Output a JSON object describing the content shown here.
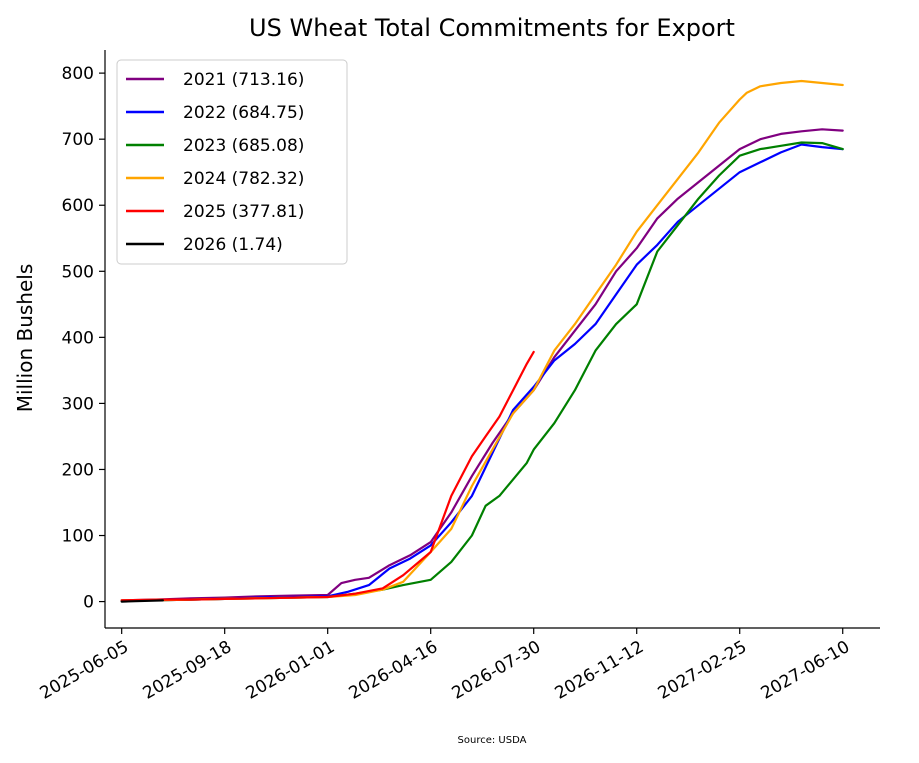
{
  "chart_data": {
    "type": "line",
    "title": "US Wheat Total Commitments for Export",
    "xlabel": "",
    "ylabel": "Million Bushels",
    "source": "Source: USDA",
    "xlim": [
      "2025-05-19",
      "2027-07-18"
    ],
    "ylim": [
      -40,
      835
    ],
    "x_ticks": [
      "2025-06-05",
      "2025-09-18",
      "2026-01-01",
      "2026-04-16",
      "2026-07-30",
      "2026-11-12",
      "2027-02-25",
      "2027-06-10"
    ],
    "y_ticks": [
      0,
      100,
      200,
      300,
      400,
      500,
      600,
      700,
      800
    ],
    "grid": false,
    "legend_position": "top-left",
    "series": [
      {
        "name": "2021 (713.16)",
        "color": "#800080",
        "points": [
          [
            "2025-06-05",
            2
          ],
          [
            "2025-07-10",
            3
          ],
          [
            "2025-08-14",
            5
          ],
          [
            "2025-09-18",
            6
          ],
          [
            "2025-10-23",
            8
          ],
          [
            "2025-11-27",
            9
          ],
          [
            "2026-01-01",
            10
          ],
          [
            "2026-01-15",
            28
          ],
          [
            "2026-01-29",
            33
          ],
          [
            "2026-02-12",
            36
          ],
          [
            "2026-03-05",
            55
          ],
          [
            "2026-03-26",
            70
          ],
          [
            "2026-04-16",
            90
          ],
          [
            "2026-05-07",
            135
          ],
          [
            "2026-05-28",
            190
          ],
          [
            "2026-06-18",
            240
          ],
          [
            "2026-07-09",
            285
          ],
          [
            "2026-07-30",
            320
          ],
          [
            "2026-08-20",
            370
          ],
          [
            "2026-09-10",
            410
          ],
          [
            "2026-10-01",
            450
          ],
          [
            "2026-10-22",
            500
          ],
          [
            "2026-11-12",
            535
          ],
          [
            "2026-12-03",
            580
          ],
          [
            "2026-12-24",
            610
          ],
          [
            "2027-01-14",
            635
          ],
          [
            "2027-02-04",
            660
          ],
          [
            "2027-02-25",
            685
          ],
          [
            "2027-03-18",
            700
          ],
          [
            "2027-04-08",
            708
          ],
          [
            "2027-04-29",
            712
          ],
          [
            "2027-05-20",
            715
          ],
          [
            "2027-06-10",
            713
          ]
        ]
      },
      {
        "name": "2022 (684.75)",
        "color": "#0000ff",
        "points": [
          [
            "2025-06-05",
            1
          ],
          [
            "2025-07-10",
            2
          ],
          [
            "2025-08-14",
            3
          ],
          [
            "2025-09-18",
            4
          ],
          [
            "2025-10-23",
            6
          ],
          [
            "2025-11-27",
            7
          ],
          [
            "2026-01-01",
            8
          ],
          [
            "2026-01-22",
            15
          ],
          [
            "2026-02-12",
            25
          ],
          [
            "2026-03-05",
            50
          ],
          [
            "2026-03-26",
            65
          ],
          [
            "2026-04-16",
            85
          ],
          [
            "2026-05-07",
            120
          ],
          [
            "2026-05-28",
            160
          ],
          [
            "2026-06-18",
            225
          ],
          [
            "2026-07-09",
            290
          ],
          [
            "2026-07-30",
            325
          ],
          [
            "2026-08-20",
            365
          ],
          [
            "2026-09-10",
            390
          ],
          [
            "2026-10-01",
            420
          ],
          [
            "2026-10-22",
            465
          ],
          [
            "2026-11-12",
            510
          ],
          [
            "2026-12-03",
            540
          ],
          [
            "2026-12-24",
            575
          ],
          [
            "2027-01-14",
            600
          ],
          [
            "2027-02-04",
            625
          ],
          [
            "2027-02-25",
            650
          ],
          [
            "2027-03-18",
            665
          ],
          [
            "2027-04-08",
            680
          ],
          [
            "2027-04-29",
            692
          ],
          [
            "2027-05-20",
            688
          ],
          [
            "2027-06-10",
            685
          ]
        ]
      },
      {
        "name": "2023 (685.08)",
        "color": "#008000",
        "points": [
          [
            "2025-06-05",
            1
          ],
          [
            "2025-07-10",
            2
          ],
          [
            "2025-08-14",
            3
          ],
          [
            "2025-09-18",
            4
          ],
          [
            "2025-10-23",
            5
          ],
          [
            "2025-11-27",
            6
          ],
          [
            "2026-01-01",
            7
          ],
          [
            "2026-01-29",
            12
          ],
          [
            "2026-02-26",
            18
          ],
          [
            "2026-03-19",
            25
          ],
          [
            "2026-04-16",
            33
          ],
          [
            "2026-05-07",
            60
          ],
          [
            "2026-05-28",
            100
          ],
          [
            "2026-06-11",
            145
          ],
          [
            "2026-06-25",
            160
          ],
          [
            "2026-07-09",
            185
          ],
          [
            "2026-07-23",
            210
          ],
          [
            "2026-07-30",
            230
          ],
          [
            "2026-08-20",
            270
          ],
          [
            "2026-09-10",
            320
          ],
          [
            "2026-10-01",
            380
          ],
          [
            "2026-10-22",
            420
          ],
          [
            "2026-11-12",
            450
          ],
          [
            "2026-12-03",
            530
          ],
          [
            "2026-12-24",
            570
          ],
          [
            "2027-01-14",
            610
          ],
          [
            "2027-02-04",
            645
          ],
          [
            "2027-02-25",
            675
          ],
          [
            "2027-03-18",
            685
          ],
          [
            "2027-04-08",
            690
          ],
          [
            "2027-04-29",
            695
          ],
          [
            "2027-05-20",
            694
          ],
          [
            "2027-06-10",
            685
          ]
        ]
      },
      {
        "name": "2024 (782.32)",
        "color": "#ffa500",
        "points": [
          [
            "2025-06-05",
            2
          ],
          [
            "2025-07-10",
            2
          ],
          [
            "2025-08-14",
            3
          ],
          [
            "2025-09-18",
            4
          ],
          [
            "2025-10-23",
            5
          ],
          [
            "2025-11-27",
            6
          ],
          [
            "2026-01-01",
            7
          ],
          [
            "2026-01-29",
            10
          ],
          [
            "2026-02-26",
            18
          ],
          [
            "2026-03-19",
            30
          ],
          [
            "2026-04-16",
            75
          ],
          [
            "2026-05-07",
            110
          ],
          [
            "2026-05-28",
            175
          ],
          [
            "2026-06-18",
            230
          ],
          [
            "2026-07-09",
            285
          ],
          [
            "2026-07-30",
            320
          ],
          [
            "2026-08-20",
            380
          ],
          [
            "2026-09-10",
            420
          ],
          [
            "2026-10-01",
            465
          ],
          [
            "2026-10-22",
            510
          ],
          [
            "2026-11-12",
            560
          ],
          [
            "2026-12-03",
            600
          ],
          [
            "2026-12-24",
            640
          ],
          [
            "2027-01-14",
            680
          ],
          [
            "2027-02-04",
            725
          ],
          [
            "2027-02-25",
            760
          ],
          [
            "2027-03-04",
            770
          ],
          [
            "2027-03-18",
            780
          ],
          [
            "2027-04-08",
            785
          ],
          [
            "2027-04-29",
            788
          ],
          [
            "2027-05-20",
            785
          ],
          [
            "2027-06-10",
            782
          ]
        ]
      },
      {
        "name": "2025 (377.81)",
        "color": "#ff0000",
        "points": [
          [
            "2025-06-05",
            2
          ],
          [
            "2025-07-10",
            3
          ],
          [
            "2025-08-14",
            3
          ],
          [
            "2025-09-18",
            4
          ],
          [
            "2025-10-23",
            5
          ],
          [
            "2025-11-27",
            6
          ],
          [
            "2026-01-01",
            7
          ],
          [
            "2026-01-29",
            12
          ],
          [
            "2026-02-26",
            20
          ],
          [
            "2026-03-19",
            40
          ],
          [
            "2026-04-16",
            75
          ],
          [
            "2026-05-07",
            160
          ],
          [
            "2026-05-28",
            220
          ],
          [
            "2026-06-11",
            250
          ],
          [
            "2026-06-25",
            280
          ],
          [
            "2026-07-09",
            320
          ],
          [
            "2026-07-23",
            360
          ],
          [
            "2026-07-30",
            378
          ]
        ]
      },
      {
        "name": "2026 (1.74)",
        "color": "#000000",
        "points": [
          [
            "2025-06-05",
            0
          ],
          [
            "2025-06-19",
            0.5
          ],
          [
            "2025-07-03",
            1.2
          ],
          [
            "2025-07-17",
            1.74
          ]
        ]
      }
    ]
  }
}
